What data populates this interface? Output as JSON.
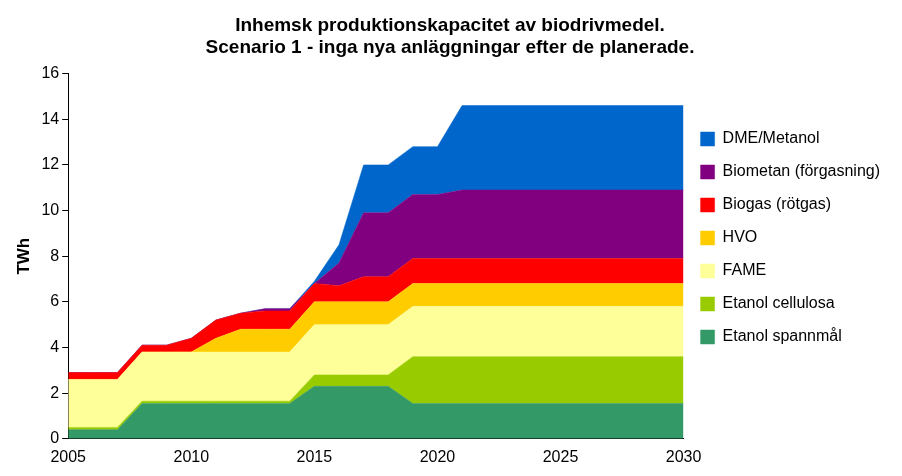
{
  "chart_data": {
    "type": "area",
    "title": [
      "Inhemsk produktionskapacitet av biodrivmedel.",
      "Scenario 1 - inga nya anläggningar efter de planerade."
    ],
    "y_label": "TWh",
    "x": [
      2005,
      2006,
      2007,
      2008,
      2009,
      2010,
      2011,
      2012,
      2013,
      2014,
      2015,
      2016,
      2017,
      2018,
      2019,
      2020,
      2021,
      2022,
      2023,
      2024,
      2025,
      2026,
      2027,
      2028,
      2029,
      2030
    ],
    "xlim": [
      2005,
      2030
    ],
    "xticks": [
      2005,
      2010,
      2015,
      2020,
      2025,
      2030
    ],
    "ylim": [
      0,
      16
    ],
    "yticks": [
      0,
      2,
      4,
      6,
      8,
      10,
      12,
      14,
      16
    ],
    "stacked": true,
    "grid": false,
    "legend": "right",
    "series": [
      {
        "name": "Etanol spannmål",
        "color": "#339966",
        "values": [
          0.4,
          0.4,
          0.4,
          1.55,
          1.55,
          1.55,
          1.55,
          1.55,
          1.55,
          1.55,
          2.3,
          2.3,
          2.3,
          2.3,
          1.55,
          1.55,
          1.55,
          1.55,
          1.55,
          1.55,
          1.55,
          1.55,
          1.55,
          1.55,
          1.55,
          1.55
        ]
      },
      {
        "name": "Etanol cellulosa",
        "color": "#99cc00",
        "values": [
          0.1,
          0.1,
          0.1,
          0.1,
          0.1,
          0.1,
          0.1,
          0.1,
          0.1,
          0.1,
          0.5,
          0.5,
          0.5,
          0.5,
          2.05,
          2.05,
          2.05,
          2.05,
          2.05,
          2.05,
          2.05,
          2.05,
          2.05,
          2.05,
          2.05,
          2.05
        ]
      },
      {
        "name": "FAME",
        "color": "#ffff99",
        "values": [
          2.1,
          2.1,
          2.1,
          2.15,
          2.15,
          2.15,
          2.15,
          2.15,
          2.15,
          2.15,
          2.2,
          2.2,
          2.2,
          2.2,
          2.2,
          2.2,
          2.2,
          2.2,
          2.2,
          2.2,
          2.2,
          2.2,
          2.2,
          2.2,
          2.2,
          2.2
        ]
      },
      {
        "name": "HVO",
        "color": "#ffcc00",
        "values": [
          0,
          0,
          0,
          0,
          0,
          0,
          0.6,
          1.0,
          1.0,
          1.0,
          1.0,
          1.0,
          1.0,
          1.0,
          1.0,
          1.0,
          1.0,
          1.0,
          1.0,
          1.0,
          1.0,
          1.0,
          1.0,
          1.0,
          1.0,
          1.0
        ]
      },
      {
        "name": "Biogas (rötgas)",
        "color": "#ff0000",
        "values": [
          0.3,
          0.3,
          0.3,
          0.3,
          0.3,
          0.6,
          0.8,
          0.7,
          0.8,
          0.8,
          0.8,
          0.7,
          1.1,
          1.1,
          1.1,
          1.1,
          1.1,
          1.1,
          1.1,
          1.1,
          1.1,
          1.1,
          1.1,
          1.1,
          1.1,
          1.1
        ]
      },
      {
        "name": "Biometan (förgasning)",
        "color": "#800080",
        "values": [
          0,
          0,
          0,
          0,
          0,
          0,
          0,
          0,
          0.1,
          0.1,
          0,
          1.0,
          2.8,
          2.8,
          2.8,
          2.8,
          3.0,
          3.0,
          3.0,
          3.0,
          3.0,
          3.0,
          3.0,
          3.0,
          3.0,
          3.0
        ]
      },
      {
        "name": "DME/Metanol",
        "color": "#0066cc",
        "values": [
          0,
          0,
          0,
          0,
          0,
          0,
          0,
          0,
          0,
          0,
          0.1,
          0.8,
          2.1,
          2.1,
          2.1,
          2.1,
          3.7,
          3.7,
          3.7,
          3.7,
          3.7,
          3.7,
          3.7,
          3.7,
          3.7,
          3.7
        ]
      }
    ]
  }
}
